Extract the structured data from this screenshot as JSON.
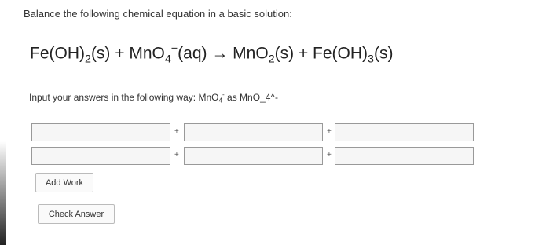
{
  "question": {
    "prompt": "Balance the following chemical equation in a basic solution:",
    "equation": [
      {
        "text": "Fe(OH)",
        "pos": "base"
      },
      {
        "text": "2",
        "pos": "sub"
      },
      {
        "text": "(s) + MnO",
        "pos": "base"
      },
      {
        "text": "4",
        "pos": "sub"
      },
      {
        "text": "−",
        "pos": "sup"
      },
      {
        "text": "(aq) → MnO",
        "pos": "base"
      },
      {
        "text": "2",
        "pos": "sub"
      },
      {
        "text": "(s) + Fe(OH)",
        "pos": "base"
      },
      {
        "text": "3",
        "pos": "sub"
      },
      {
        "text": "(s)",
        "pos": "base"
      }
    ],
    "instruction": [
      {
        "text": "Input your answers in the following way: MnO",
        "pos": "base"
      },
      {
        "text": "4",
        "pos": "sub"
      },
      {
        "text": "-",
        "pos": "sup"
      },
      {
        "text": " as MnO_4^-",
        "pos": "base"
      }
    ]
  },
  "answer_grid": {
    "rows": 2,
    "columns": 3,
    "separator": "+"
  },
  "buttons": [
    "Add Work",
    "Check Answer"
  ]
}
